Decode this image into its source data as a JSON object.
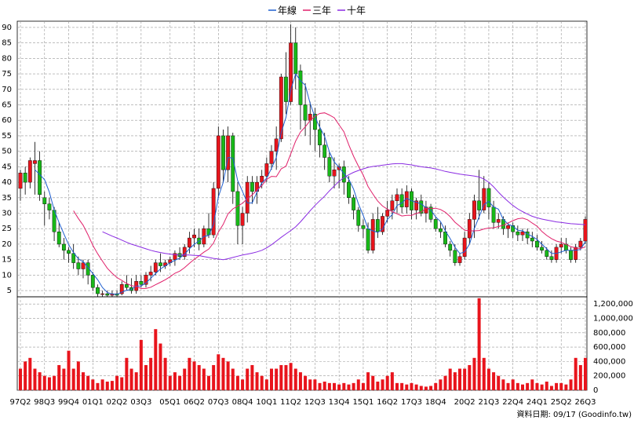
{
  "chart_data": {
    "type": "candlestick",
    "source": "資料日期: 09/17 (Goodinfo.tw)",
    "grid": true,
    "legend": "top",
    "up_color": "#e8141c",
    "down_color": "#18b818",
    "volume_color": "#e8141c",
    "categories": [
      "97Q2",
      null,
      null,
      null,
      null,
      "98Q3",
      null,
      null,
      null,
      null,
      "99Q4",
      null,
      null,
      null,
      null,
      "01Q1",
      null,
      null,
      null,
      null,
      "02Q2",
      null,
      null,
      null,
      null,
      "03Q3",
      null,
      null,
      null,
      null,
      null,
      "05Q1",
      null,
      null,
      null,
      null,
      "06Q2",
      null,
      null,
      null,
      null,
      "07Q3",
      null,
      null,
      null,
      null,
      "08Q4",
      null,
      null,
      null,
      null,
      "10Q1",
      null,
      null,
      null,
      null,
      "11Q2",
      null,
      null,
      null,
      null,
      "12Q3",
      null,
      null,
      null,
      null,
      "13Q4",
      null,
      null,
      null,
      null,
      "15Q1",
      null,
      null,
      null,
      null,
      "16Q2",
      null,
      null,
      null,
      null,
      "17Q3",
      null,
      null,
      null,
      null,
      "18Q4",
      null,
      null,
      null,
      null,
      null,
      "20Q2",
      null,
      null,
      null,
      null,
      "21Q3",
      null,
      null,
      null,
      null,
      "22Q4",
      null,
      null,
      null,
      null,
      "24Q1",
      null,
      null,
      null,
      null,
      "25Q2",
      null,
      null,
      null,
      null,
      "26Q3"
    ],
    "ohlc": [
      [
        38,
        44,
        34,
        43
      ],
      [
        43,
        45,
        36,
        40
      ],
      [
        40,
        48,
        38,
        47
      ],
      [
        46,
        53,
        36,
        47
      ],
      [
        47,
        50,
        34,
        36
      ],
      [
        35,
        37,
        26,
        33
      ],
      [
        33,
        35,
        28,
        31
      ],
      [
        31,
        32,
        21,
        24
      ],
      [
        24,
        27,
        19,
        20
      ],
      [
        20,
        22,
        15,
        18
      ],
      [
        18,
        19,
        14,
        17
      ],
      [
        17,
        20,
        12,
        14
      ],
      [
        14,
        16,
        10,
        12
      ],
      [
        12,
        15,
        9,
        14
      ],
      [
        14,
        15,
        7,
        10
      ],
      [
        10,
        11,
        5,
        6
      ],
      [
        6,
        7,
        3,
        4
      ],
      [
        4,
        5,
        3,
        4
      ],
      [
        4,
        5,
        3,
        3.5
      ],
      [
        3.5,
        5,
        3,
        4
      ],
      [
        4,
        5,
        3,
        3.5
      ],
      [
        4,
        8,
        3.5,
        7
      ],
      [
        7,
        10,
        5,
        6
      ],
      [
        6,
        9,
        4,
        5
      ],
      [
        5,
        10,
        4,
        8
      ],
      [
        8,
        10,
        6,
        7
      ],
      [
        7,
        11,
        6,
        10
      ],
      [
        10,
        13,
        8,
        11
      ],
      [
        11,
        15,
        10,
        14
      ],
      [
        14,
        17,
        11,
        13
      ],
      [
        13,
        15,
        12,
        14
      ],
      [
        14,
        16,
        13,
        15
      ],
      [
        15,
        18,
        13,
        17
      ],
      [
        17,
        19,
        15,
        16
      ],
      [
        16,
        20,
        15,
        19
      ],
      [
        19,
        24,
        17,
        22
      ],
      [
        22,
        25,
        19,
        23
      ],
      [
        22,
        25,
        18,
        20
      ],
      [
        20,
        26,
        19,
        25
      ],
      [
        25,
        30,
        22,
        23
      ],
      [
        23,
        40,
        22,
        38
      ],
      [
        38,
        58,
        35,
        55
      ],
      [
        55,
        57,
        40,
        44
      ],
      [
        44,
        58,
        40,
        55
      ],
      [
        55,
        56,
        33,
        37
      ],
      [
        37,
        40,
        20,
        26
      ],
      [
        26,
        32,
        20,
        30
      ],
      [
        30,
        42,
        27,
        40
      ],
      [
        40,
        42,
        33,
        37
      ],
      [
        37,
        42,
        33,
        40
      ],
      [
        40,
        44,
        38,
        42
      ],
      [
        42,
        48,
        40,
        46
      ],
      [
        46,
        52,
        44,
        50
      ],
      [
        50,
        58,
        44,
        54
      ],
      [
        54,
        75,
        53,
        74
      ],
      [
        74,
        82,
        62,
        66
      ],
      [
        66,
        91,
        65,
        85
      ],
      [
        85,
        90,
        70,
        75
      ],
      [
        76,
        78,
        57,
        65
      ],
      [
        65,
        72,
        55,
        60
      ],
      [
        60,
        66,
        52,
        62
      ],
      [
        62,
        64,
        50,
        57
      ],
      [
        57,
        60,
        48,
        52
      ],
      [
        52,
        56,
        44,
        48
      ],
      [
        48,
        50,
        40,
        42
      ],
      [
        42,
        48,
        38,
        44
      ],
      [
        44,
        46,
        38,
        45
      ],
      [
        45,
        47,
        36,
        40
      ],
      [
        40,
        42,
        33,
        35
      ],
      [
        35,
        36,
        28,
        31
      ],
      [
        31,
        32,
        24,
        26
      ],
      [
        26,
        28,
        22,
        25
      ],
      [
        25,
        27,
        17,
        18
      ],
      [
        18,
        30,
        17,
        28
      ],
      [
        28,
        32,
        22,
        24
      ],
      [
        24,
        30,
        23,
        29
      ],
      [
        29,
        34,
        27,
        31
      ],
      [
        31,
        36,
        28,
        34
      ],
      [
        34,
        38,
        30,
        36
      ],
      [
        36,
        38,
        30,
        32
      ],
      [
        32,
        39,
        30,
        37
      ],
      [
        37,
        38,
        28,
        31
      ],
      [
        31,
        35,
        28,
        34
      ],
      [
        34,
        36,
        29,
        30
      ],
      [
        30,
        34,
        27,
        32
      ],
      [
        32,
        33,
        27,
        28
      ],
      [
        28,
        29,
        24,
        25
      ],
      [
        25,
        27,
        22,
        24
      ],
      [
        24,
        26,
        19,
        20
      ],
      [
        20,
        21,
        16,
        18
      ],
      [
        18,
        20,
        13,
        14
      ],
      [
        14,
        17,
        13,
        16
      ],
      [
        16,
        24,
        15,
        22
      ],
      [
        22,
        30,
        20,
        28
      ],
      [
        28,
        36,
        22,
        34
      ],
      [
        34,
        44,
        28,
        31
      ],
      [
        31,
        42,
        30,
        38
      ],
      [
        38,
        40,
        28,
        32
      ],
      [
        32,
        34,
        25,
        27
      ],
      [
        27,
        30,
        25,
        28
      ],
      [
        28,
        29,
        23,
        25
      ],
      [
        25,
        27,
        22,
        26
      ],
      [
        26,
        27,
        22,
        24
      ],
      [
        24,
        26,
        21,
        23
      ],
      [
        23,
        25,
        21,
        24
      ],
      [
        24,
        25,
        20,
        22
      ],
      [
        22,
        24,
        19,
        21
      ],
      [
        21,
        23,
        18,
        19
      ],
      [
        19,
        21,
        17,
        18
      ],
      [
        18,
        19,
        15,
        16
      ],
      [
        16,
        18,
        14,
        15
      ],
      [
        15,
        20,
        14,
        19
      ],
      [
        19,
        22,
        17,
        20
      ],
      [
        20,
        22,
        17,
        18
      ],
      [
        18,
        19,
        14,
        15
      ],
      [
        15,
        20,
        14,
        19
      ],
      [
        19,
        22,
        18,
        21
      ],
      [
        21,
        29,
        20,
        28
      ]
    ],
    "volume": [
      300000,
      400000,
      450000,
      300000,
      250000,
      200000,
      180000,
      200000,
      350000,
      300000,
      550000,
      300000,
      400000,
      250000,
      200000,
      150000,
      100000,
      150000,
      120000,
      130000,
      200000,
      180000,
      450000,
      300000,
      250000,
      700000,
      350000,
      450000,
      850000,
      650000,
      450000,
      200000,
      250000,
      200000,
      300000,
      450000,
      400000,
      350000,
      300000,
      200000,
      350000,
      500000,
      450000,
      400000,
      300000,
      200000,
      150000,
      300000,
      350000,
      250000,
      200000,
      150000,
      300000,
      300000,
      350000,
      350000,
      380000,
      300000,
      250000,
      200000,
      150000,
      150000,
      100000,
      120000,
      100000,
      100000,
      80000,
      100000,
      80000,
      100000,
      150000,
      100000,
      250000,
      200000,
      120000,
      150000,
      200000,
      250000,
      100000,
      100000,
      80000,
      100000,
      80000,
      60000,
      50000,
      60000,
      100000,
      150000,
      200000,
      300000,
      250000,
      300000,
      300000,
      350000,
      450000,
      1280000,
      450000,
      300000,
      250000,
      200000,
      150000,
      100000,
      150000,
      100000,
      80000,
      100000,
      150000,
      100000,
      80000,
      120000,
      60000,
      100000,
      100000,
      80000,
      150000,
      450000,
      350000,
      450000
    ],
    "series": [
      {
        "name": "年線",
        "color": "#1f5fd0",
        "values": [
          null,
          null,
          null,
          44,
          42.5,
          40.8,
          36.8,
          31,
          27,
          23.3,
          19.8,
          17.3,
          15.3,
          14.3,
          12.5,
          10.5,
          8.5,
          6,
          4.4,
          3.9,
          3.8,
          4.5,
          5.1,
          5.4,
          6.5,
          6.5,
          7.5,
          9,
          10.5,
          12,
          13,
          14,
          14.8,
          15.5,
          16.8,
          18.5,
          20,
          21,
          22.5,
          22.8,
          26.5,
          35.3,
          40,
          48,
          47.8,
          40.5,
          37,
          33.3,
          33.3,
          36.8,
          39.8,
          41.3,
          44.5,
          48,
          56,
          61,
          69.8,
          75,
          72.8,
          71.3,
          65.5,
          61,
          57.8,
          54.8,
          49.8,
          46.5,
          44.8,
          42.8,
          41,
          37.8,
          33,
          29.3,
          25,
          24.3,
          23.8,
          24.8,
          28,
          29.5,
          32.5,
          33.3,
          34.8,
          34,
          33.5,
          33,
          31.8,
          31,
          28.8,
          27.3,
          24.3,
          21.8,
          19,
          17,
          17.5,
          20,
          25,
          28.8,
          32.8,
          33.8,
          32,
          31.3,
          28,
          26.5,
          25.8,
          24.5,
          24.3,
          23.3,
          22.5,
          21.5,
          20,
          18.5,
          17,
          17,
          17.5,
          18,
          18,
          18,
          18.3,
          20.8
        ]
      },
      {
        "name": "三年",
        "color": "#e0206a",
        "values": [
          null,
          null,
          null,
          null,
          null,
          null,
          null,
          null,
          null,
          null,
          null,
          30.8,
          28.3,
          26.1,
          23,
          19.6,
          16.9,
          14.5,
          12.2,
          10.6,
          9.2,
          8.3,
          7.3,
          6.6,
          6.3,
          5.7,
          5.7,
          6.1,
          6.9,
          7.7,
          8.5,
          9.5,
          10.6,
          11.3,
          12.4,
          13.8,
          15.1,
          16.2,
          17.4,
          18.4,
          20.4,
          23.9,
          26.4,
          29.8,
          31.4,
          32.3,
          33.2,
          34.7,
          35.9,
          37.5,
          38.9,
          40.9,
          41.9,
          41.8,
          44.3,
          45.2,
          49.2,
          53.3,
          56.2,
          57.9,
          59.9,
          61.3,
          62.2,
          62.4,
          61.7,
          60.8,
          58.5,
          56.3,
          52.1,
          48.4,
          45.2,
          42.3,
          38.6,
          36.2,
          33.9,
          32.3,
          31.3,
          30.5,
          29.8,
          29.1,
          29.3,
          29.3,
          29.9,
          30.4,
          31.5,
          31.5,
          31.6,
          31.2,
          30.3,
          28.9,
          27.1,
          25.8,
          24.5,
          24.3,
          24.3,
          24.4,
          24.9,
          25.2,
          25.3,
          25.7,
          26.1,
          26.8,
          27.6,
          28.2,
          28.4,
          27.9,
          26.8,
          25.8,
          24.1,
          22.8,
          21.8,
          21,
          20.6,
          19.9,
          19.2,
          18.8,
          18.6,
          19.1
        ]
      },
      {
        "name": "十年",
        "color": "#8a2be2",
        "values": [
          null,
          null,
          null,
          null,
          null,
          null,
          null,
          null,
          null,
          null,
          null,
          null,
          null,
          null,
          null,
          null,
          null,
          24,
          23.3,
          22.6,
          22,
          21.3,
          20.6,
          20,
          19.5,
          19,
          18.5,
          18,
          17.6,
          17.3,
          17,
          16.8,
          16.6,
          16.5,
          16.5,
          16.5,
          16.4,
          16.3,
          16,
          15.7,
          15.4,
          15.2,
          15,
          15.3,
          15.7,
          16.1,
          16.5,
          16.8,
          17.1,
          17.5,
          18,
          18.8,
          19.8,
          21,
          22.2,
          23.3,
          24.4,
          25.6,
          27.2,
          29,
          30.8,
          32.5,
          34,
          35.5,
          37.2,
          38.8,
          40.3,
          41.5,
          42.4,
          43.2,
          43.8,
          44.3,
          44.8,
          45.1,
          45.3,
          45.5,
          45.7,
          45.9,
          46,
          46,
          45.8,
          45.6,
          45.3,
          45,
          44.8,
          44.6,
          44.3,
          43.9,
          43.5,
          43.2,
          42.9,
          42.6,
          42.4,
          42.2,
          42,
          41.7,
          41,
          40,
          38.5,
          36.8,
          35.2,
          33.8,
          32.5,
          31.4,
          30.5,
          29.7,
          29,
          28.5,
          28.1,
          27.8,
          27.5,
          27.2,
          27,
          26.8,
          26.6,
          26.5,
          26.4,
          26.3
        ]
      }
    ],
    "ylim": [
      3,
      92
    ],
    "yticks": [
      5,
      10,
      15,
      20,
      25,
      30,
      35,
      40,
      45,
      50,
      55,
      60,
      65,
      70,
      75,
      80,
      85,
      90
    ],
    "y2lim": [
      0,
      1300000
    ],
    "y2ticks": [
      0,
      {
        "value": 200000,
        "label": "200,000"
      },
      {
        "value": 400000,
        "label": "400,000"
      },
      {
        "value": 600000,
        "label": "600,000"
      },
      {
        "value": 800000,
        "label": "800,000"
      },
      {
        "value": 1000000,
        "label": "1,000,000"
      },
      {
        "value": 1200000,
        "label": "1,200,000"
      }
    ]
  }
}
